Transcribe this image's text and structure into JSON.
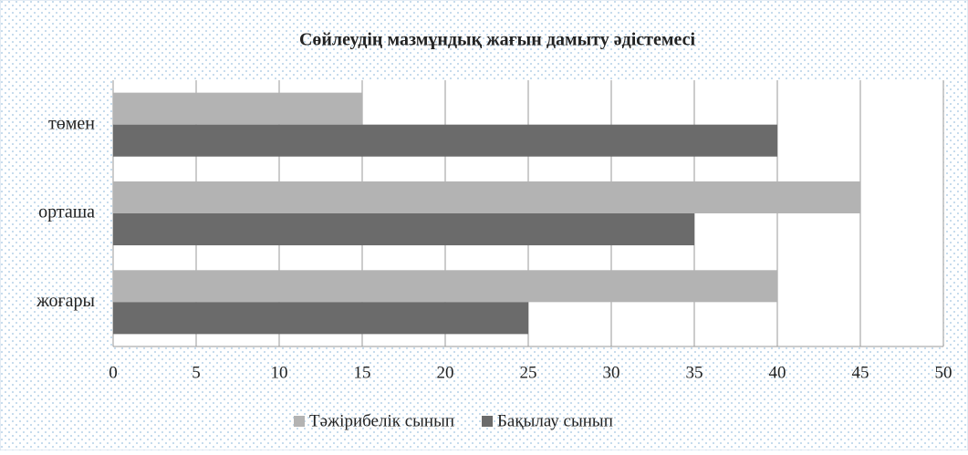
{
  "chart_data": {
    "type": "hbar",
    "title": "Сөйлеудің мазмұндық жағын дамыту әдістемесі",
    "categories": [
      "төмен",
      "орташа",
      "жоғары"
    ],
    "series": [
      {
        "name": "Тәжірибелік сынып",
        "color": "#b3b3b3",
        "values": [
          15,
          45,
          40
        ]
      },
      {
        "name": "Бақылау сынып",
        "color": "#6b6b6b",
        "values": [
          40,
          35,
          25
        ]
      }
    ],
    "xlim": [
      0,
      50
    ],
    "xticks": [
      0,
      5,
      10,
      15,
      20,
      25,
      30,
      35,
      40,
      45,
      50
    ],
    "grid": true,
    "legend": "bottom"
  }
}
